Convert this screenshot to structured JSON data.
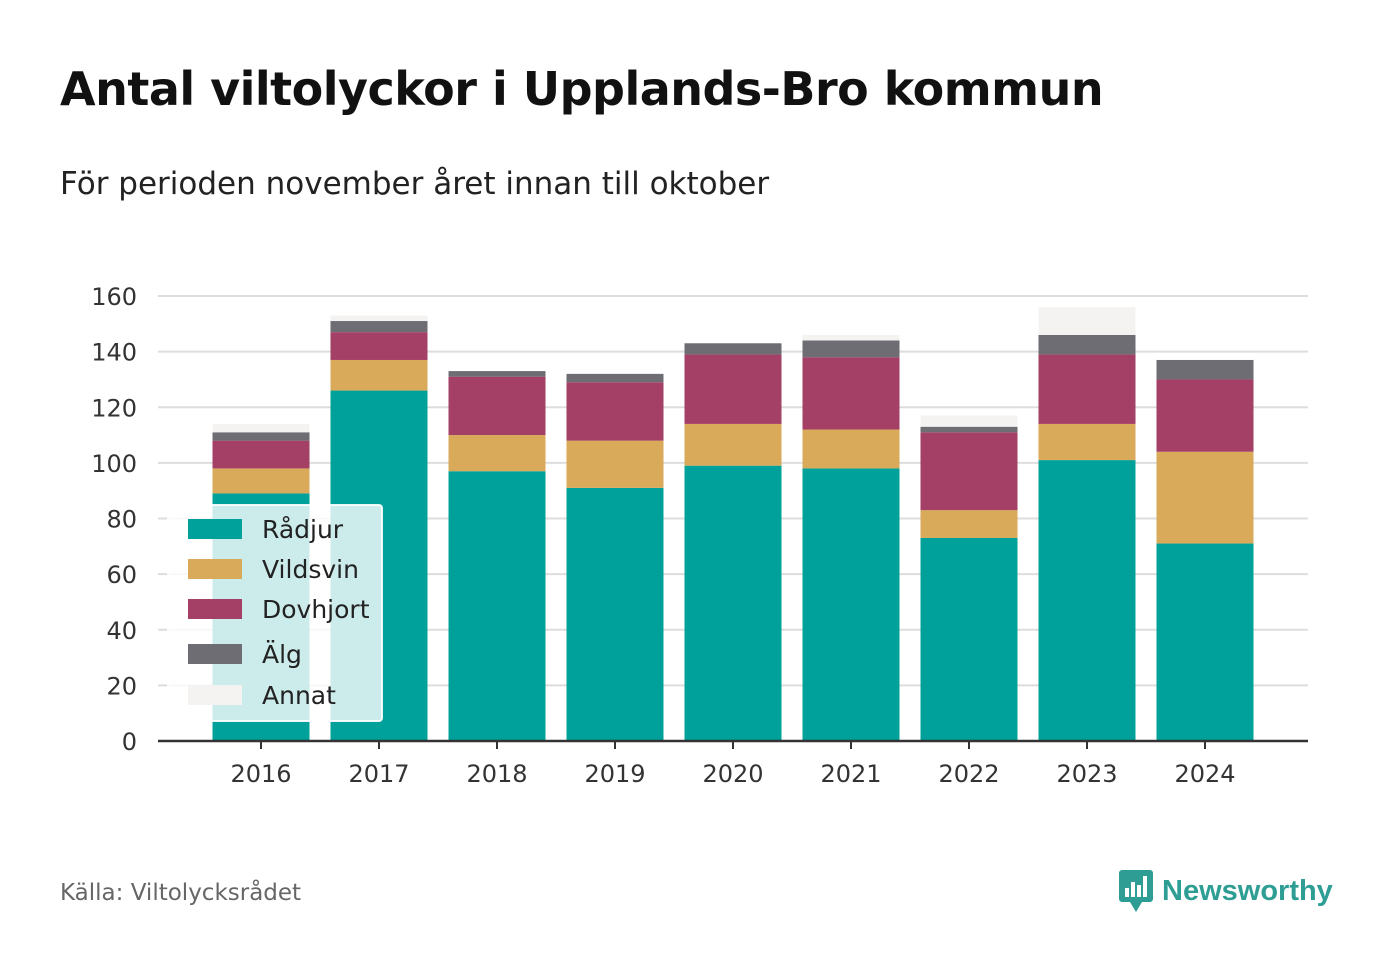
{
  "title": "Antal viltolyckor i Upplands-Bro kommun",
  "subtitle": "För perioden november året innan till oktober",
  "source": "Källa: Viltolycksrådet",
  "brand": "Newsworthy",
  "colors": {
    "Rådjur": "#00a19a",
    "Vildsvin": "#d9aa5a",
    "Dovhjort": "#a43f65",
    "Älg": "#6e6d73",
    "Annat": "#f5f3f1",
    "grid": "#dddddd",
    "axis": "#333333",
    "brand": "#2e9e95"
  },
  "chart_data": {
    "type": "bar",
    "stacked": true,
    "title": "Antal viltolyckor i Upplands-Bro kommun",
    "subtitle": "För perioden november året innan till oktober",
    "categories": [
      "2016",
      "2017",
      "2018",
      "2019",
      "2020",
      "2021",
      "2022",
      "2023",
      "2024"
    ],
    "series": [
      {
        "name": "Rådjur",
        "values": [
          89,
          126,
          97,
          91,
          99,
          98,
          73,
          101,
          71
        ]
      },
      {
        "name": "Vildsvin",
        "values": [
          9,
          11,
          13,
          17,
          15,
          14,
          10,
          13,
          33
        ]
      },
      {
        "name": "Dovhjort",
        "values": [
          10,
          10,
          21,
          21,
          25,
          26,
          28,
          25,
          26
        ]
      },
      {
        "name": "Älg",
        "values": [
          3,
          4,
          2,
          3,
          4,
          6,
          2,
          7,
          7
        ]
      },
      {
        "name": "Annat",
        "values": [
          3,
          2,
          0,
          0,
          0,
          2,
          4,
          10,
          0
        ]
      }
    ],
    "yticks": [
      0,
      20,
      40,
      60,
      80,
      100,
      120,
      140,
      160
    ],
    "ylim": [
      0,
      160
    ],
    "xlabel": "",
    "ylabel": "",
    "grid": true,
    "legend": "bottom-left"
  }
}
